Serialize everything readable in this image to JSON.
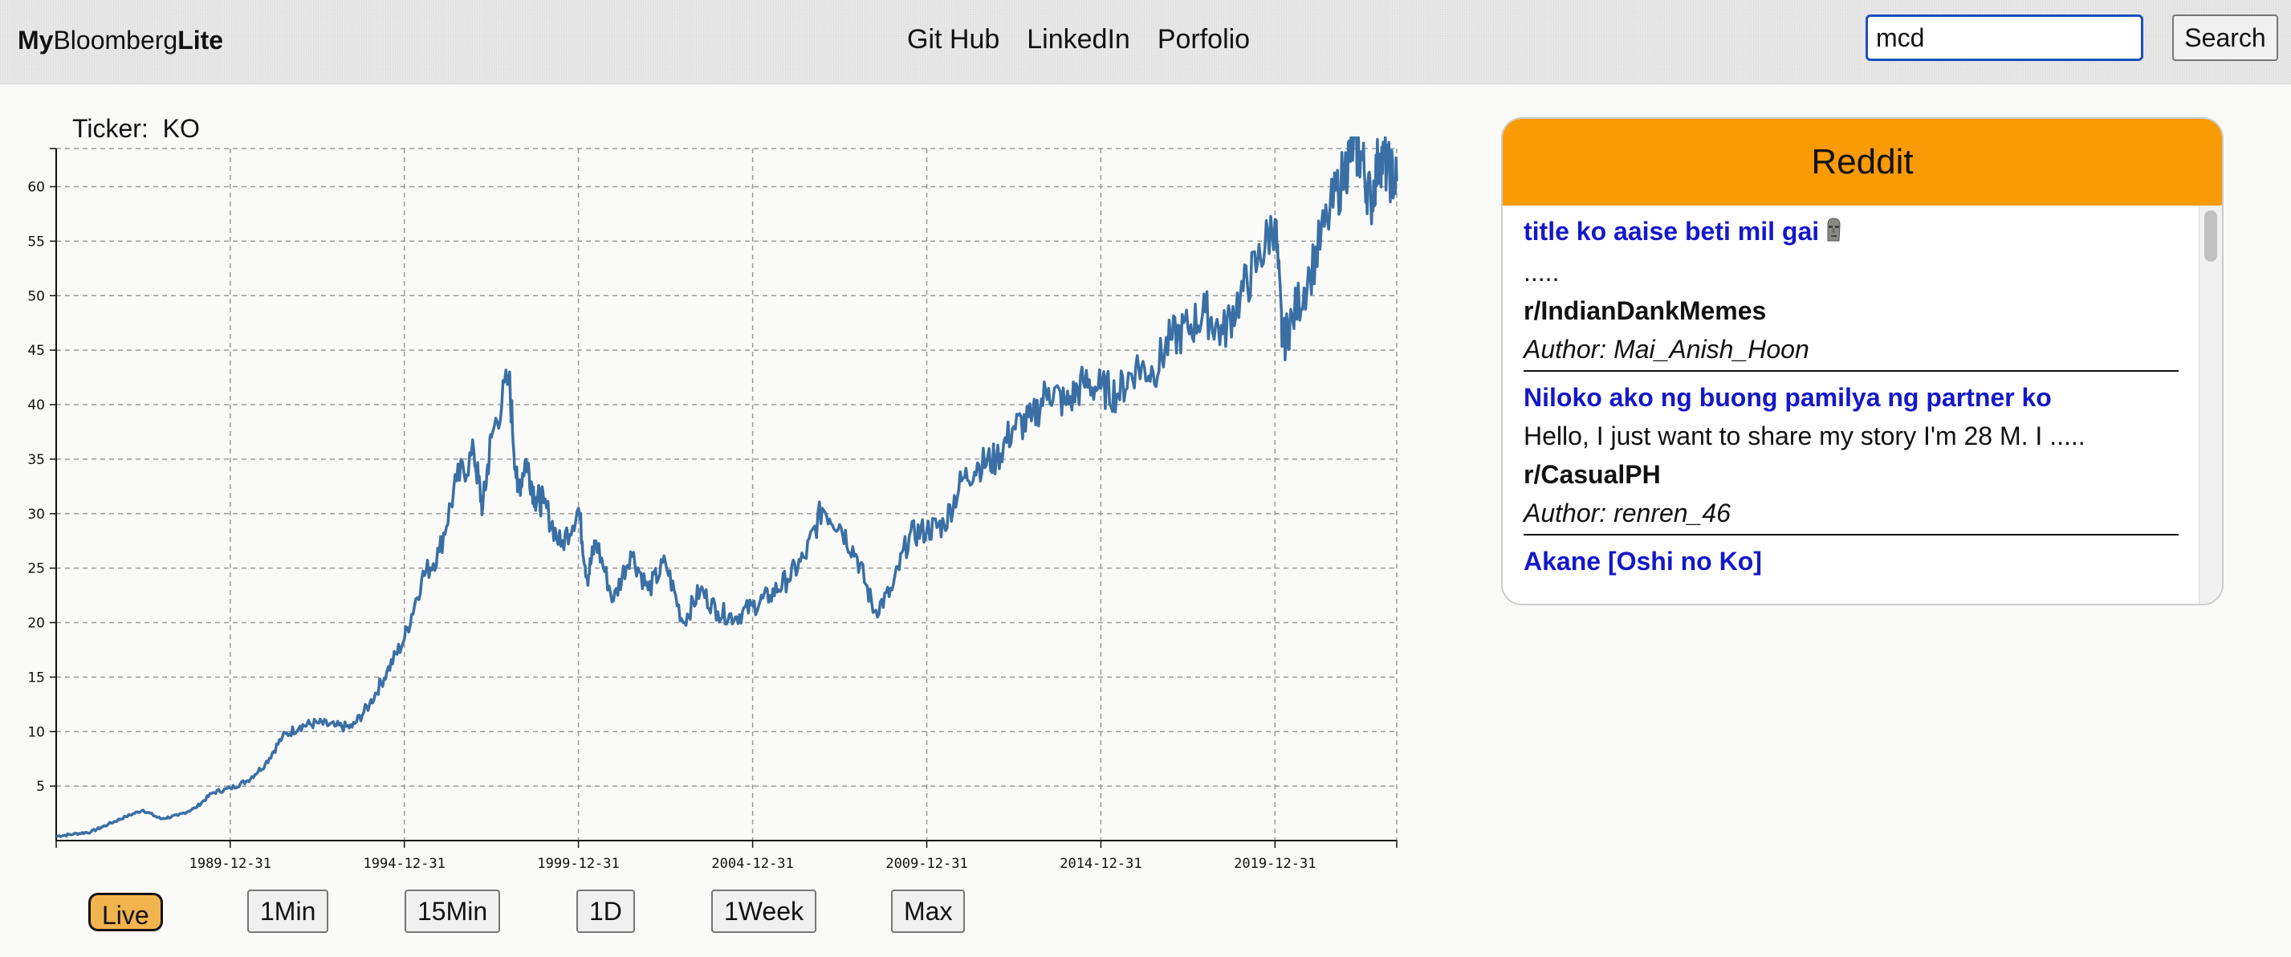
{
  "navbar": {
    "brand_prefix": "My",
    "brand_middle": "Bloomberg",
    "brand_suffix": "Lite",
    "links": [
      "Git Hub",
      "LinkedIn",
      "Porfolio"
    ],
    "search_value": "mcd",
    "search_button": "Search"
  },
  "ticker": {
    "label": "Ticker:",
    "symbol": "KO"
  },
  "timeframes": [
    "Live",
    "1Min",
    "15Min",
    "1D",
    "1Week",
    "Max"
  ],
  "active_timeframe": "Live",
  "reddit": {
    "title": "Reddit",
    "posts": [
      {
        "title": "title ko aaise beti mil gai",
        "icon": "moai-emoji-icon",
        "body": ".....",
        "subreddit": "r/IndianDankMemes",
        "author": "Author: Mai_Anish_Hoon"
      },
      {
        "title": "Niloko ako ng buong pamilya ng partner ko",
        "body": "Hello, I just want to share my story I'm 28 M. I .....",
        "subreddit": "r/CasualPH",
        "author": "Author: renren_46"
      },
      {
        "title": "Akane [Oshi no Ko]",
        "body": "....."
      }
    ]
  },
  "chart_data": {
    "type": "line",
    "title": "",
    "xlabel": "",
    "ylabel": "",
    "x_tick_labels": [
      "1989-12-31",
      "1994-12-31",
      "1999-12-31",
      "2004-12-31",
      "2009-12-31",
      "2014-12-31",
      "2019-12-31"
    ],
    "y_ticks": [
      5,
      10,
      15,
      20,
      25,
      30,
      35,
      40,
      45,
      50,
      55,
      60
    ],
    "xlim": [
      "1985-01-01",
      "2023-06-30"
    ],
    "ylim": [
      0,
      63.5
    ],
    "grid": true,
    "line_color": "#3a6fa5",
    "series": [
      {
        "x": [
          "1985-01-01",
          "1985-07-01",
          "1986-01-01",
          "1986-07-01",
          "1987-01-01",
          "1987-07-01",
          "1988-01-01",
          "1988-07-01",
          "1989-01-01",
          "1989-07-01",
          "1990-01-01",
          "1990-07-01",
          "1991-01-01",
          "1991-07-01",
          "1992-01-01",
          "1992-07-01",
          "1993-01-01",
          "1993-07-01",
          "1994-01-01",
          "1994-07-01",
          "1995-01-01",
          "1995-07-01",
          "1996-01-01",
          "1996-07-01",
          "1997-01-01",
          "1997-04-01",
          "1997-07-01",
          "1998-01-01",
          "1998-04-01",
          "1998-07-01",
          "1998-10-01",
          "1999-01-01",
          "1999-07-01",
          "2000-01-01",
          "2000-04-01",
          "2000-07-01",
          "2001-01-01",
          "2001-07-01",
          "2002-01-01",
          "2002-07-01",
          "2003-01-01",
          "2003-07-01",
          "2004-01-01",
          "2004-07-01",
          "2005-01-01",
          "2005-07-01",
          "2006-01-01",
          "2006-07-01",
          "2007-01-01",
          "2007-07-01",
          "2008-01-01",
          "2008-07-01",
          "2009-01-01",
          "2009-07-01",
          "2010-01-01",
          "2010-07-01",
          "2011-01-01",
          "2011-07-01",
          "2012-01-01",
          "2012-07-01",
          "2013-01-01",
          "2013-07-01",
          "2014-01-01",
          "2014-07-01",
          "2015-01-01",
          "2015-07-01",
          "2016-01-01",
          "2016-07-01",
          "2017-01-01",
          "2017-07-01",
          "2018-01-01",
          "2018-07-01",
          "2019-01-01",
          "2019-07-01",
          "2020-01-01",
          "2020-03-20",
          "2020-07-01",
          "2021-01-01",
          "2021-07-01",
          "2022-01-01",
          "2022-04-01",
          "2022-07-01",
          "2022-10-01",
          "2023-01-01",
          "2023-04-01",
          "2023-06-30"
        ],
        "y": [
          0.4,
          0.6,
          0.8,
          1.5,
          2.2,
          2.8,
          2.0,
          2.3,
          3.0,
          4.4,
          4.8,
          5.5,
          7.0,
          9.5,
          10.5,
          10.8,
          10.5,
          10.4,
          12.5,
          15.5,
          18.5,
          24.0,
          26.5,
          33.0,
          35.5,
          30.5,
          37.0,
          42.5,
          32.0,
          35.0,
          31.5,
          31.0,
          27.0,
          30.5,
          24.0,
          27.5,
          22.0,
          26.5,
          23.0,
          25.5,
          20.0,
          23.0,
          21.0,
          20.5,
          21.5,
          22.5,
          24.0,
          26.0,
          30.5,
          29.0,
          26.0,
          21.0,
          23.0,
          28.0,
          28.5,
          29.0,
          33.0,
          34.5,
          35.0,
          38.0,
          38.5,
          41.5,
          40.0,
          42.0,
          41.5,
          41.0,
          43.5,
          43.0,
          46.0,
          47.0,
          48.5,
          46.5,
          50.0,
          53.0,
          57.0,
          45.5,
          48.0,
          52.0,
          57.0,
          61.5,
          64.0,
          62.5,
          58.5,
          63.0,
          61.5,
          60.5
        ]
      }
    ]
  }
}
